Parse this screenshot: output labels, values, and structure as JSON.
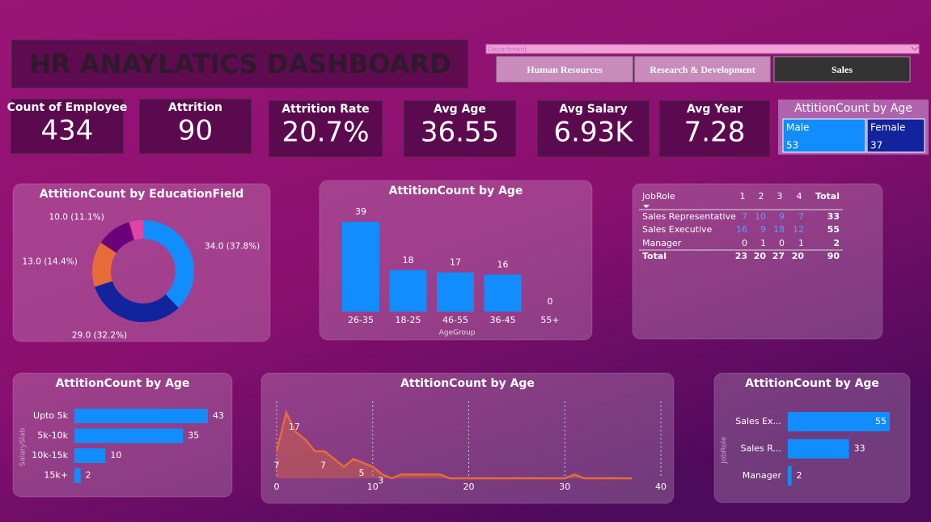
{
  "header": {
    "title": "HR ANAYLATICS DASHBOARD"
  },
  "slicer": {
    "placeholder": "Department",
    "buttons": [
      "Human Resources",
      "Research & Development",
      "Sales"
    ],
    "active": 2
  },
  "kpis": [
    {
      "label": "Count of Employee",
      "value": "434"
    },
    {
      "label": "Attrition",
      "value": "90"
    },
    {
      "label": "Attrition Rate",
      "value": "20.7%"
    },
    {
      "label": "Avg Age",
      "value": "36.55"
    },
    {
      "label": "Avg Salary",
      "value": "6.93K"
    },
    {
      "label": "Avg Year",
      "value": "7.28"
    }
  ],
  "gender_card": {
    "title": "AttitionCount by Age",
    "items": [
      {
        "label": "Male",
        "value": 53,
        "color": "#118dff"
      },
      {
        "label": "Female",
        "value": 37,
        "color": "#12239e"
      }
    ]
  },
  "chart_data": [
    {
      "type": "pie",
      "title": "AttitionCount by EducationField",
      "hole": true,
      "categories": [
        null,
        null,
        null,
        null,
        null
      ],
      "values": [
        34,
        29,
        13,
        10,
        4
      ],
      "value_labels": [
        "34.0 (37.8%)",
        "29.0 (32.2%)",
        "13.0 (14.4%)",
        "10.0 (11.1%)",
        null
      ],
      "colors": [
        "#118dff",
        "#12239e",
        "#e66c37",
        "#6b007b",
        "#e044a7"
      ]
    },
    {
      "type": "bar",
      "title": "AttitionCount by Age",
      "x_label": "AgeGroup",
      "categories": [
        "26-35",
        "18-25",
        "46-55",
        "36-45",
        "55+"
      ],
      "values": [
        39,
        18,
        17,
        16,
        0
      ],
      "color": "#118dff"
    },
    {
      "type": "line",
      "title": "AttitionCount by Age",
      "area": true,
      "color": "#e66c37",
      "grid": true,
      "x": [
        0,
        1,
        2,
        3,
        4,
        5,
        6,
        7,
        8,
        9,
        10,
        11,
        12,
        13,
        14,
        15,
        16,
        17,
        18,
        19,
        20,
        21,
        22,
        23,
        24,
        25,
        26,
        27,
        28,
        29,
        30,
        31,
        32,
        33,
        34,
        35,
        36,
        37
      ],
      "values": [
        7,
        17,
        12,
        10,
        7,
        7,
        5,
        3,
        5,
        4,
        3,
        1,
        0,
        1,
        1,
        1,
        1,
        1,
        0,
        0,
        0,
        0,
        0,
        0,
        0,
        0,
        0,
        0,
        0,
        0,
        0,
        1,
        0,
        0,
        0,
        0,
        0,
        0
      ],
      "value_labels": [
        "7",
        "17",
        null,
        null,
        "7",
        null,
        null,
        null,
        "5",
        null,
        "3",
        null,
        null,
        null,
        null,
        null,
        null,
        null,
        null,
        null,
        null,
        null,
        null,
        null,
        null,
        null,
        null,
        null,
        null,
        null,
        null,
        null,
        null,
        null,
        null,
        null,
        null,
        null
      ],
      "xlim": [
        0,
        40
      ],
      "xticks": [
        0,
        10,
        20,
        30,
        40
      ]
    },
    {
      "type": "bar",
      "orientation": "horizontal",
      "title": "AttitionCount by Age",
      "y_label": "SalarySlab",
      "categories": [
        "Upto 5k",
        "5k-10k",
        "10k-15k",
        "15k+"
      ],
      "values": [
        43,
        35,
        10,
        2
      ],
      "color": "#118dff"
    },
    {
      "type": "bar",
      "orientation": "horizontal",
      "title": "AttitionCount by Age",
      "y_label": "JobRole",
      "categories": [
        "Sales Ex...",
        "Sales R...",
        "Manager"
      ],
      "values": [
        55,
        33,
        2
      ],
      "color": "#118dff"
    }
  ],
  "table": {
    "header": [
      "JobRole",
      "1",
      "2",
      "3",
      "4",
      "Total"
    ],
    "rows": [
      [
        "Sales Representative",
        "7",
        "10",
        "9",
        "7",
        "33"
      ],
      [
        "Sales Executive",
        "16",
        "9",
        "18",
        "12",
        "55"
      ],
      [
        "Manager",
        "0",
        "1",
        "0",
        "1",
        "2"
      ],
      [
        "Total",
        "23",
        "20",
        "27",
        "20",
        "90"
      ]
    ]
  }
}
